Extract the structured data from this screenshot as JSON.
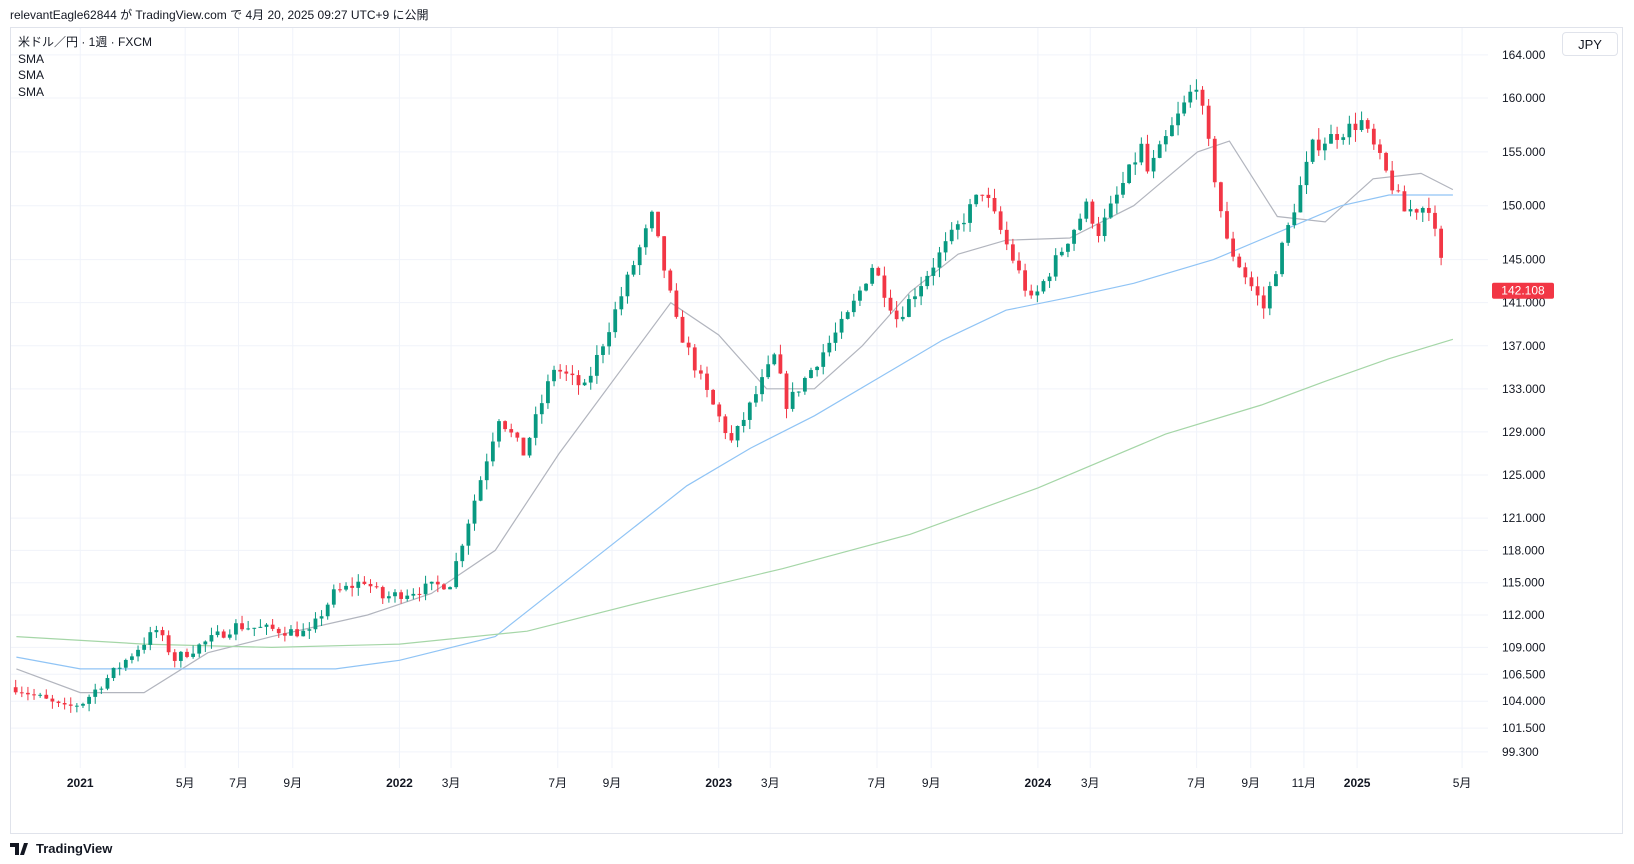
{
  "header": {
    "caption": "relevantEagle62844 が TradingView.com で 4月 20, 2025 09:27 UTC+9 に公開"
  },
  "legend": {
    "symbol": "米ドル／円 · 1週 · FXCM",
    "indicators": [
      "SMA",
      "SMA",
      "SMA"
    ]
  },
  "currency_button": "JPY",
  "footer": {
    "brand": "TradingView"
  },
  "colors": {
    "up": "#089981",
    "down": "#f23645",
    "sma_short": "#b2b5be",
    "sma_mid": "#90c4f5",
    "sma_long": "#a5d6a7",
    "grid": "#f0f3fa",
    "price_label_bg": "#f23645"
  },
  "chart_data": {
    "type": "candlestick",
    "symbol": "USDJPY",
    "interval": "1W",
    "ylim": [
      97.8,
      166.5
    ],
    "y_ticks": [
      "164.000",
      "160.000",
      "155.000",
      "150.000",
      "145.000",
      "141.000",
      "137.000",
      "133.000",
      "129.000",
      "125.000",
      "121.000",
      "118.000",
      "115.000",
      "112.000",
      "109.000",
      "106.500",
      "104.000",
      "101.500",
      "99.300"
    ],
    "x_ticks": [
      {
        "label": "2021",
        "date": "2021-01-01",
        "bold": true
      },
      {
        "label": "5月",
        "date": "2021-05-01"
      },
      {
        "label": "7月",
        "date": "2021-07-01"
      },
      {
        "label": "9月",
        "date": "2021-09-01"
      },
      {
        "label": "2022",
        "date": "2022-01-01",
        "bold": true
      },
      {
        "label": "3月",
        "date": "2022-03-01"
      },
      {
        "label": "7月",
        "date": "2022-07-01"
      },
      {
        "label": "9月",
        "date": "2022-09-01"
      },
      {
        "label": "2023",
        "date": "2023-01-01",
        "bold": true
      },
      {
        "label": "3月",
        "date": "2023-03-01"
      },
      {
        "label": "7月",
        "date": "2023-07-01"
      },
      {
        "label": "9月",
        "date": "2023-09-01"
      },
      {
        "label": "2024",
        "date": "2024-01-01",
        "bold": true
      },
      {
        "label": "3月",
        "date": "2024-03-01"
      },
      {
        "label": "7月",
        "date": "2024-07-01"
      },
      {
        "label": "9月",
        "date": "2024-09-01"
      },
      {
        "label": "11月",
        "date": "2024-11-01"
      },
      {
        "label": "2025",
        "date": "2025-01-01",
        "bold": true
      },
      {
        "label": "5月",
        "date": "2025-05-01"
      }
    ],
    "last_price": "142.108",
    "close_anchors": [
      [
        "2020-10-19",
        105.3
      ],
      [
        "2020-12-14",
        103.3
      ],
      [
        "2021-01-04",
        103.9
      ],
      [
        "2021-03-29",
        110.6
      ],
      [
        "2021-04-19",
        107.9
      ],
      [
        "2021-06-28",
        111.0
      ],
      [
        "2021-09-20",
        110.3
      ],
      [
        "2021-10-18",
        114.0
      ],
      [
        "2021-11-22",
        115.2
      ],
      [
        "2021-12-13",
        113.6
      ],
      [
        "2022-02-28",
        115.0
      ],
      [
        "2022-04-25",
        130.5
      ],
      [
        "2022-05-23",
        127.0
      ],
      [
        "2022-06-27",
        135.0
      ],
      [
        "2022-08-01",
        133.0
      ],
      [
        "2022-10-17",
        149.0
      ],
      [
        "2022-11-14",
        139.0
      ],
      [
        "2022-12-19",
        132.5
      ],
      [
        "2023-01-16",
        128.0
      ],
      [
        "2023-03-06",
        136.0
      ],
      [
        "2023-03-20",
        131.5
      ],
      [
        "2023-05-29",
        139.8
      ],
      [
        "2023-06-26",
        144.5
      ],
      [
        "2023-07-24",
        139.5
      ],
      [
        "2023-10-30",
        151.5
      ],
      [
        "2023-12-25",
        141.0
      ],
      [
        "2024-02-26",
        150.0
      ],
      [
        "2024-03-11",
        147.5
      ],
      [
        "2024-04-29",
        155.5
      ],
      [
        "2024-05-06",
        153.0
      ],
      [
        "2024-07-01",
        161.5
      ],
      [
        "2024-08-05",
        146.5
      ],
      [
        "2024-09-16",
        140.5
      ],
      [
        "2024-11-11",
        155.5
      ],
      [
        "2025-01-06",
        157.8
      ],
      [
        "2025-02-24",
        149.5
      ],
      [
        "2025-03-24",
        150.0
      ],
      [
        "2025-04-14",
        142.1
      ]
    ],
    "series": [
      {
        "name": "SMA",
        "type": "line",
        "values": [
          [
            2020.8,
            107.0
          ],
          [
            2021.0,
            104.8
          ],
          [
            2021.2,
            104.8
          ],
          [
            2021.4,
            108.5
          ],
          [
            2021.6,
            110.0
          ],
          [
            2021.9,
            112.0
          ],
          [
            2022.1,
            114.0
          ],
          [
            2022.3,
            118.0
          ],
          [
            2022.5,
            127.0
          ],
          [
            2022.7,
            135.0
          ],
          [
            2022.85,
            141.0
          ],
          [
            2023.0,
            138.0
          ],
          [
            2023.15,
            133.0
          ],
          [
            2023.3,
            133.0
          ],
          [
            2023.45,
            137.0
          ],
          [
            2023.6,
            142.0
          ],
          [
            2023.75,
            145.5
          ],
          [
            2023.9,
            146.8
          ],
          [
            2024.1,
            147.0
          ],
          [
            2024.3,
            150.0
          ],
          [
            2024.5,
            155.0
          ],
          [
            2024.6,
            156.0
          ],
          [
            2024.75,
            149.0
          ],
          [
            2024.9,
            148.5
          ],
          [
            2025.05,
            152.5
          ],
          [
            2025.2,
            153.0
          ],
          [
            2025.3,
            151.5
          ]
        ]
      },
      {
        "name": "SMA",
        "type": "line",
        "values": [
          [
            2020.8,
            108.1
          ],
          [
            2021.0,
            107.0
          ],
          [
            2021.4,
            107.0
          ],
          [
            2021.8,
            107.0
          ],
          [
            2022.0,
            107.8
          ],
          [
            2022.3,
            110.0
          ],
          [
            2022.6,
            117.0
          ],
          [
            2022.9,
            124.0
          ],
          [
            2023.1,
            127.5
          ],
          [
            2023.3,
            130.5
          ],
          [
            2023.5,
            134.0
          ],
          [
            2023.7,
            137.5
          ],
          [
            2023.9,
            140.3
          ],
          [
            2024.1,
            141.5
          ],
          [
            2024.3,
            142.8
          ],
          [
            2024.55,
            145.0
          ],
          [
            2024.75,
            147.5
          ],
          [
            2024.95,
            150.0
          ],
          [
            2025.1,
            151.0
          ],
          [
            2025.3,
            151.0
          ]
        ]
      },
      {
        "name": "SMA",
        "type": "line",
        "values": [
          [
            2020.8,
            110.0
          ],
          [
            2021.2,
            109.3
          ],
          [
            2021.6,
            109.0
          ],
          [
            2022.0,
            109.3
          ],
          [
            2022.4,
            110.5
          ],
          [
            2022.8,
            113.5
          ],
          [
            2023.2,
            116.3
          ],
          [
            2023.6,
            119.5
          ],
          [
            2024.0,
            123.8
          ],
          [
            2024.4,
            128.8
          ],
          [
            2024.7,
            131.5
          ],
          [
            2024.9,
            133.7
          ],
          [
            2025.1,
            135.8
          ],
          [
            2025.3,
            137.6
          ]
        ]
      }
    ]
  }
}
